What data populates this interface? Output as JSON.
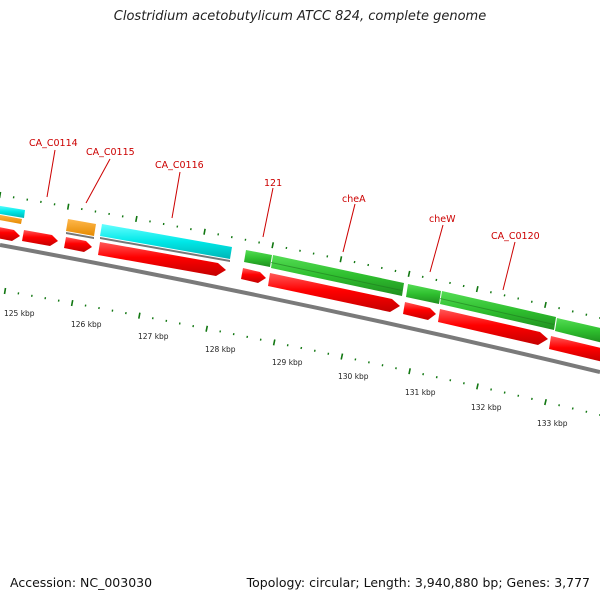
{
  "title": "Clostridium acetobutylicum ATCC 824, complete genome",
  "accession": "Accession: NC_003030",
  "topology": "Topology: circular; Length: 3,940,880 bp; Genes: 3,777",
  "colors": {
    "cds": "#ff0000",
    "cds_dark": "#cc0000",
    "gene_green": "#33cc33",
    "gene_green_dark": "#1f8f1f",
    "gene_cyan": "#00e5e5",
    "gene_orange": "#ff9900",
    "backbone": "#888888",
    "tick": "#117711",
    "label": "#cc0000"
  },
  "scale_labels": [
    "125 kbp",
    "126 kbp",
    "127 kbp",
    "128 kbp",
    "129 kbp",
    "130 kbp",
    "131 kbp",
    "132 kbp",
    "133 kbp"
  ],
  "gene_labels": [
    "CA_C0114",
    "CA_C0115",
    "CA_C0116",
    "121",
    "cheA",
    "cheW",
    "CA_C0120"
  ]
}
